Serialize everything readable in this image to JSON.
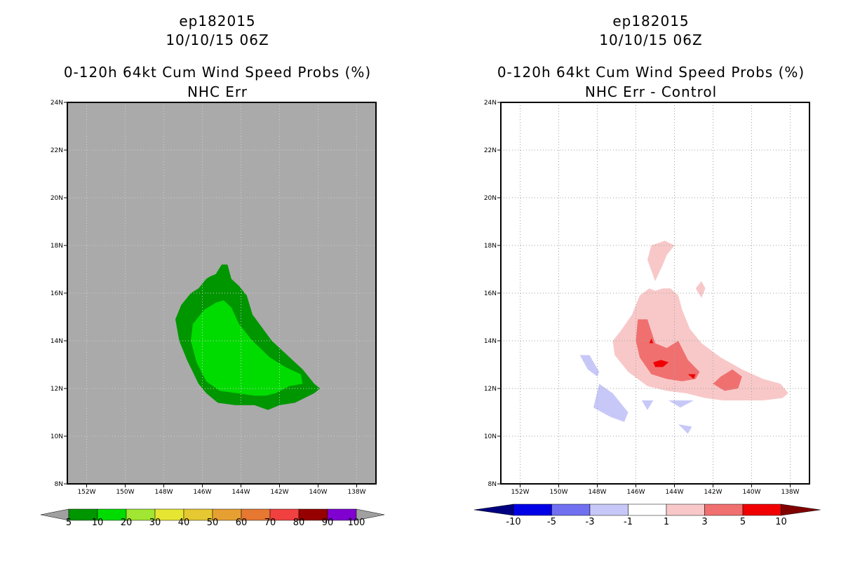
{
  "chart_data": [
    {
      "type": "contour",
      "storm_id": "ep182015",
      "datetime": "10/10/15 06Z",
      "title": "0-120h 64kt Cum Wind Speed Probs (%)",
      "subtitle": "NHC Err",
      "lon_ticks": [
        "152W",
        "150W",
        "148W",
        "146W",
        "144W",
        "142W",
        "140W",
        "138W"
      ],
      "lat_ticks": [
        "8N",
        "10N",
        "12N",
        "14N",
        "16N",
        "18N",
        "20N",
        "22N",
        "24N"
      ],
      "lon_range": [
        -153,
        -137
      ],
      "lat_range": [
        8,
        24
      ],
      "legend": {
        "labels": [
          "5",
          "10",
          "20",
          "30",
          "40",
          "50",
          "60",
          "70",
          "80",
          "90",
          "100"
        ],
        "colors": [
          "#a0a0a0",
          "#009600",
          "#00dc00",
          "#a0e632",
          "#e6e632",
          "#e6c832",
          "#e6a032",
          "#e67832",
          "#f04040",
          "#960000",
          "#8000d0",
          "#a0a0a0"
        ]
      },
      "contours": [
        {
          "level": "5-10",
          "color": "#009600",
          "points": [
            [
              -146.2,
              16.2
            ],
            [
              -145.8,
              16.6
            ],
            [
              -145.6,
              16.7
            ],
            [
              -145.3,
              16.8
            ],
            [
              -145,
              17.2
            ],
            [
              -144.7,
              17.2
            ],
            [
              -144.5,
              16.6
            ],
            [
              -144.1,
              16.3
            ],
            [
              -143.7,
              15.9
            ],
            [
              -143.4,
              15.1
            ],
            [
              -142.4,
              14
            ],
            [
              -141.6,
              13.4
            ],
            [
              -140.8,
              12.8
            ],
            [
              -140.2,
              12.2
            ],
            [
              -139.9,
              12
            ],
            [
              -140.2,
              11.8
            ],
            [
              -141.2,
              11.4
            ],
            [
              -142,
              11.3
            ],
            [
              -142.6,
              11.1
            ],
            [
              -143.3,
              11.3
            ],
            [
              -144.3,
              11.3
            ],
            [
              -145.2,
              11.4
            ],
            [
              -145.8,
              11.8
            ],
            [
              -146.2,
              12.2
            ],
            [
              -146.8,
              13.2
            ],
            [
              -147.2,
              14
            ],
            [
              -147.4,
              14.9
            ],
            [
              -147.1,
              15.5
            ],
            [
              -146.6,
              16
            ]
          ]
        },
        {
          "level": "10-20",
          "color": "#00dc00",
          "points": [
            [
              -145.9,
              15.3
            ],
            [
              -145.3,
              15.6
            ],
            [
              -144.9,
              15.7
            ],
            [
              -144.5,
              15.4
            ],
            [
              -144.1,
              14.7
            ],
            [
              -143.4,
              14
            ],
            [
              -142.5,
              13.3
            ],
            [
              -141.7,
              12.9
            ],
            [
              -140.9,
              12.6
            ],
            [
              -140.8,
              12.2
            ],
            [
              -141.5,
              12.1
            ],
            [
              -142.2,
              11.8
            ],
            [
              -142.7,
              11.7
            ],
            [
              -143.3,
              11.7
            ],
            [
              -144.2,
              11.8
            ],
            [
              -145.1,
              11.9
            ],
            [
              -145.8,
              12.3
            ],
            [
              -146.3,
              13.1
            ],
            [
              -146.6,
              14
            ],
            [
              -146.5,
              14.7
            ]
          ]
        }
      ]
    },
    {
      "type": "contour",
      "storm_id": "ep182015",
      "datetime": "10/10/15 06Z",
      "title": "0-120h 64kt Cum Wind Speed Probs (%)",
      "subtitle": "NHC Err - Control",
      "lon_ticks": [
        "152W",
        "150W",
        "148W",
        "146W",
        "144W",
        "142W",
        "140W",
        "138W"
      ],
      "lat_ticks": [
        "8N",
        "10N",
        "12N",
        "14N",
        "16N",
        "18N",
        "20N",
        "22N",
        "24N"
      ],
      "lon_range": [
        -153,
        -137
      ],
      "lat_range": [
        8,
        24
      ],
      "legend": {
        "labels": [
          "-10",
          "-5",
          "-3",
          "-1",
          "1",
          "3",
          "5",
          "10"
        ],
        "colors": [
          "#000080",
          "#0000e6",
          "#7070f0",
          "#c8c8f8",
          "#ffffff",
          "#f8c8c8",
          "#f07070",
          "#f00000",
          "#800000"
        ]
      },
      "contours": [
        {
          "level": "1-3",
          "color": "#f8c8c8",
          "points": [
            [
              -147.2,
              14
            ],
            [
              -146.8,
              14.4
            ],
            [
              -146.2,
              15.1
            ],
            [
              -145.8,
              15.9
            ],
            [
              -145.3,
              16.2
            ],
            [
              -145,
              16.1
            ],
            [
              -144.6,
              16.2
            ],
            [
              -144.2,
              16.2
            ],
            [
              -143.8,
              15.9
            ],
            [
              -143.6,
              15.3
            ],
            [
              -143.2,
              14.5
            ],
            [
              -142.6,
              13.9
            ],
            [
              -141.6,
              13.3
            ],
            [
              -140.5,
              12.8
            ],
            [
              -139.4,
              12.4
            ],
            [
              -138.5,
              12.2
            ],
            [
              -138.1,
              11.8
            ],
            [
              -138.4,
              11.6
            ],
            [
              -139.4,
              11.5
            ],
            [
              -140.5,
              11.5
            ],
            [
              -141.5,
              11.5
            ],
            [
              -142.4,
              11.6
            ],
            [
              -143.4,
              11.8
            ],
            [
              -144.4,
              11.9
            ],
            [
              -145.4,
              12.1
            ],
            [
              -146.4,
              12.7
            ],
            [
              -147.1,
              13.4
            ]
          ]
        },
        {
          "level": "1-3",
          "color": "#f8c8c8",
          "points": [
            [
              -145,
              16.5
            ],
            [
              -145.4,
              17.4
            ],
            [
              -145.2,
              18
            ],
            [
              -144.5,
              18.2
            ],
            [
              -144,
              18
            ],
            [
              -144.4,
              17.6
            ],
            [
              -144.6,
              17.2
            ]
          ]
        },
        {
          "level": "1-3",
          "color": "#f8c8c8",
          "points": [
            [
              -142.9,
              16.2
            ],
            [
              -142.6,
              16.5
            ],
            [
              -142.4,
              16.2
            ],
            [
              -142.6,
              15.8
            ]
          ]
        },
        {
          "level": "3-5",
          "color": "#f07070",
          "points": [
            [
              -145.9,
              14.9
            ],
            [
              -145.4,
              14.9
            ],
            [
              -145,
              13.9
            ],
            [
              -144.4,
              13.7
            ],
            [
              -143.8,
              14
            ],
            [
              -143.3,
              13.2
            ],
            [
              -142.7,
              12.7
            ],
            [
              -142.9,
              12.4
            ],
            [
              -143.6,
              12.3
            ],
            [
              -144.4,
              12.4
            ],
            [
              -145.2,
              12.6
            ],
            [
              -145.8,
              13.3
            ],
            [
              -146,
              14
            ]
          ]
        },
        {
          "level": "3-5",
          "color": "#f07070",
          "points": [
            [
              -141.6,
              12.5
            ],
            [
              -141,
              12.8
            ],
            [
              -140.5,
              12.5
            ],
            [
              -140.7,
              12
            ],
            [
              -141.4,
              11.9
            ],
            [
              -142,
              12.2
            ]
          ]
        },
        {
          "level": "5-10",
          "color": "#f00000",
          "points": [
            [
              -145.1,
              13.1
            ],
            [
              -144.7,
              13.2
            ],
            [
              -144.3,
              13.1
            ],
            [
              -144.6,
              12.9
            ],
            [
              -145,
              12.9
            ]
          ]
        },
        {
          "level": "5-10",
          "color": "#f00000",
          "points": [
            [
              -143.3,
              12.6
            ],
            [
              -142.9,
              12.6
            ],
            [
              -143,
              12.4
            ]
          ]
        },
        {
          "level": "5-10",
          "color": "#f00000",
          "points": [
            [
              -145.3,
              13.9
            ],
            [
              -145.2,
              14.1
            ],
            [
              -145.1,
              13.9
            ]
          ]
        },
        {
          "level": "-3--1",
          "color": "#c8c8f8",
          "points": [
            [
              -148.9,
              13.4
            ],
            [
              -148.4,
              13.4
            ],
            [
              -147.9,
              12.7
            ],
            [
              -148,
              12.5
            ],
            [
              -148.5,
              12.8
            ]
          ]
        },
        {
          "level": "-3--1",
          "color": "#c8c8f8",
          "points": [
            [
              -147.9,
              12.2
            ],
            [
              -147.2,
              11.8
            ],
            [
              -146.4,
              11
            ],
            [
              -146.6,
              10.6
            ],
            [
              -147.3,
              10.8
            ],
            [
              -148.2,
              11.2
            ]
          ]
        },
        {
          "level": "-3--1",
          "color": "#c8c8f8",
          "points": [
            [
              -145.7,
              11.5
            ],
            [
              -145.1,
              11.5
            ],
            [
              -145.4,
              11.1
            ]
          ]
        },
        {
          "level": "-3--1",
          "color": "#c8c8f8",
          "points": [
            [
              -144.3,
              11.5
            ],
            [
              -143,
              11.5
            ],
            [
              -143.7,
              11.2
            ]
          ]
        },
        {
          "level": "-3--1",
          "color": "#c8c8f8",
          "points": [
            [
              -143.8,
              10.5
            ],
            [
              -143.3,
              10.1
            ],
            [
              -143.1,
              10.4
            ]
          ]
        }
      ]
    }
  ]
}
